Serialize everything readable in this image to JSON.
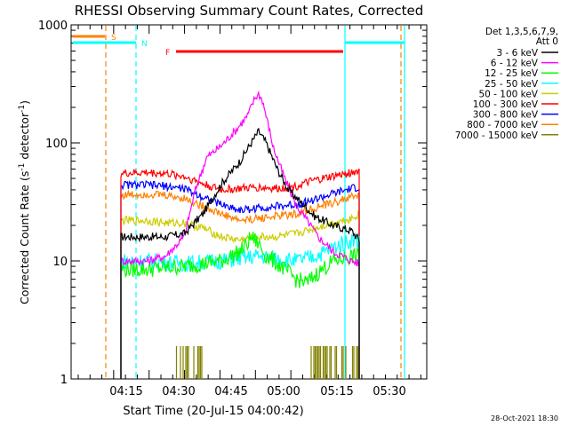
{
  "chart_data": {
    "type": "line",
    "title": "RHESSI Observing Summary Count Rates, Corrected",
    "xlabel": "Start Time (20-Jul-15 04:00:42)",
    "ylabel": "Corrected Count Rate (s",
    "ylabel_sup1": "-1",
    "ylabel_mid": " detector",
    "ylabel_sup2": "-1",
    "ylabel_end": ")",
    "y_scale": "log",
    "ylim": [
      1,
      1000
    ],
    "xlim_minutes": [
      0,
      95
    ],
    "x_ticks": [
      {
        "t": 15,
        "label": "04:15"
      },
      {
        "t": 30,
        "label": "04:30"
      },
      {
        "t": 45,
        "label": "04:45"
      },
      {
        "t": 60,
        "label": "05:00"
      },
      {
        "t": 75,
        "label": "05:15"
      },
      {
        "t": 90,
        "label": "05:30"
      }
    ],
    "y_tick_labels": [
      {
        "v": 1,
        "label": "1"
      },
      {
        "v": 10,
        "label": "10"
      },
      {
        "v": 100,
        "label": "100"
      },
      {
        "v": 1000,
        "label": "1000"
      }
    ],
    "legend": {
      "header1": "Det 1,3,5,6,7,9,",
      "header2": "Att 0",
      "position": "right"
    },
    "series": [
      {
        "name": "3 - 6 keV",
        "color": "#000000",
        "x": [
          13,
          25,
          30,
          35,
          40,
          45,
          48,
          50,
          52,
          55,
          58,
          62,
          65,
          70,
          75,
          77
        ],
        "y": [
          16,
          16,
          17,
          25,
          45,
          70,
          100,
          125,
          100,
          60,
          40,
          30,
          24,
          20,
          18,
          15
        ]
      },
      {
        "name": "6 - 12 keV",
        "color": "#ff00ff",
        "x": [
          13,
          20,
          25,
          30,
          33,
          36,
          40,
          44,
          47,
          49,
          50,
          51,
          52,
          54,
          57,
          60,
          63,
          66,
          70,
          75,
          77
        ],
        "y": [
          10,
          10,
          11,
          16,
          40,
          75,
          95,
          130,
          170,
          240,
          260,
          230,
          170,
          90,
          50,
          30,
          22,
          16,
          12,
          10,
          9.5
        ]
      },
      {
        "name": "12 - 25 keV",
        "color": "#00ff00",
        "x": [
          13,
          20,
          30,
          40,
          45,
          47,
          48,
          50,
          52,
          55,
          58,
          60,
          63,
          65,
          70,
          75,
          77
        ],
        "y": [
          8.5,
          8.5,
          9,
          10,
          12,
          14,
          16,
          14,
          11,
          9.5,
          8,
          7,
          6.5,
          7.5,
          10,
          11,
          11
        ]
      },
      {
        "name": "25 - 50 keV",
        "color": "#00ffff",
        "x": [
          13,
          20,
          30,
          40,
          45,
          50,
          55,
          60,
          63,
          65,
          68,
          70,
          75,
          77
        ],
        "y": [
          10,
          10,
          9.5,
          10,
          10.5,
          11,
          10.5,
          10,
          10.5,
          11,
          12,
          13,
          15,
          15
        ]
      },
      {
        "name": "50 - 100 keV",
        "color": "#cccc00",
        "x": [
          13,
          20,
          25,
          30,
          35,
          40,
          45,
          50,
          55,
          60,
          63,
          65,
          70,
          75,
          77
        ],
        "y": [
          22,
          22,
          21,
          21,
          19,
          16,
          15,
          16,
          16,
          17,
          18,
          19,
          21,
          23,
          25
        ]
      },
      {
        "name": "100 - 300 keV",
        "color": "#ff0000",
        "x": [
          13,
          20,
          25,
          30,
          35,
          40,
          45,
          50,
          55,
          60,
          65,
          70,
          75,
          77
        ],
        "y": [
          55,
          56,
          55,
          52,
          45,
          40,
          41,
          42,
          41,
          43,
          48,
          52,
          56,
          58
        ]
      },
      {
        "name": "300 - 800 keV",
        "color": "#0000ff",
        "x": [
          13,
          20,
          25,
          30,
          35,
          40,
          45,
          50,
          55,
          60,
          65,
          70,
          75,
          77
        ],
        "y": [
          44,
          44,
          43,
          41,
          35,
          30,
          27,
          28,
          29,
          30,
          33,
          37,
          41,
          42
        ]
      },
      {
        "name": "800 - 7000 keV",
        "color": "#ff8000",
        "x": [
          13,
          20,
          25,
          30,
          35,
          40,
          45,
          50,
          55,
          60,
          65,
          70,
          75,
          77
        ],
        "y": [
          36,
          37,
          36,
          34,
          29,
          25,
          22,
          23,
          24,
          25,
          28,
          31,
          35,
          36
        ]
      },
      {
        "name": "7000 - 15000 keV",
        "color": "#808000",
        "x": [],
        "y": []
      }
    ],
    "flag_lines": [
      {
        "label": "S",
        "color": "#ff8000",
        "t1": 0,
        "t2": 13.5,
        "value": 800
      },
      {
        "label": "N",
        "color": "#00ffff",
        "t1": 0,
        "t2": 26.5,
        "value": 660
      },
      {
        "label": "F",
        "color": "#ff0000",
        "t1": 44.5,
        "t2": 116.5,
        "value": 560
      },
      {
        "label": "",
        "color": "#00ffff",
        "t1": 116.5,
        "t2": 144,
        "value": 660
      }
    ],
    "vlines": [
      {
        "t": 14.7,
        "color": "#ff8000",
        "style": "dashed"
      },
      {
        "t": 27.4,
        "color": "#00ffff",
        "style": "dashed"
      },
      {
        "t": 115.2,
        "color": "#00ffff",
        "style": "solid"
      },
      {
        "t": 143.3,
        "color": "#ff8000",
        "style": "dashed"
      },
      {
        "t": 144.3,
        "color": "#00ffff",
        "style": "solid"
      }
    ],
    "timestamp": "28-Oct-2021 18:30"
  }
}
